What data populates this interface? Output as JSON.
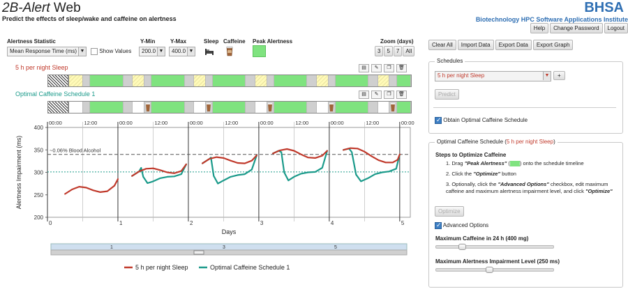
{
  "header": {
    "title_italic": "2B-Alert",
    "title_rest": " Web",
    "subtitle": "Predict the effects of sleep/wake and caffeine on alertness",
    "brand": "BHSA",
    "org": "Biotechnology HPC Software Applications Institute",
    "buttons": [
      "Help",
      "Change Password",
      "Logout"
    ]
  },
  "controls": {
    "alertness_statistic_label": "Alertness Statistic",
    "alertness_statistic_value": "Mean Response Time (ms)",
    "show_values_label": "Show Values",
    "ymin_label": "Y-Min",
    "ymin_value": "200.0",
    "ymax_label": "Y-Max",
    "ymax_value": "400.0",
    "sleep_label": "Sleep",
    "caffeine_label": "Caffeine",
    "peak_label": "Peak Alertness",
    "zoom_label": "Zoom (days)",
    "zoom_buttons": [
      "3",
      "5",
      "7",
      "All"
    ]
  },
  "schedules": [
    {
      "title": "5 h per night Sleep",
      "color": "#c0392b"
    },
    {
      "title": "Optimal Caffeine Schedule 1",
      "color": "#1a9a8a"
    }
  ],
  "actions": [
    "Clear All",
    "Import Data",
    "Export Data",
    "Export Graph"
  ],
  "panel": {
    "schedules_legend": "Schedules",
    "schedule_select": "5 h per night Sleep",
    "add_label": "+",
    "predict_label": "Predict",
    "obtain_label": "Obtain Optimal Caffeine Schedule",
    "opt_legend_prefix": "Optimal Caffeine Schedule (",
    "opt_legend_sched": "5 h per night Sleep",
    "opt_legend_suffix": ")",
    "steps_title": "Steps to Optimize Caffeine",
    "step1_a": "1. Drag ",
    "step1_b": "\"Peak Alertness\"",
    "step1_c": " (",
    "step1_d": ") onto the schedule timeline",
    "step2_a": "2. Click the ",
    "step2_b": "\"Optimize\"",
    "step2_c": " button",
    "step3_a": "3. Optionally, click the ",
    "step3_b": "\"Advanced Options\"",
    "step3_c": " checkbox, edit maximum caffeine and maximum alertness impairment level, and click ",
    "step3_d": "\"Optimize\"",
    "optimize_label": "Optimize",
    "advanced_label": "Advanced Options",
    "max_caffeine_label": "Maximum Caffeine in 24 h (400 mg)",
    "max_impairment_label": "Maximum Alertness Impairment Level (250 ms)",
    "max_caffeine_fraction": 0.2,
    "max_impairment_fraction": 0.45
  },
  "chart_data": {
    "type": "line",
    "ylabel": "Alertness Impairment (ms)",
    "xlabel": "Days",
    "ylim": [
      200,
      400
    ],
    "xlim": [
      0,
      5.15
    ],
    "yticks": [
      200,
      250,
      300,
      350,
      400
    ],
    "xticks": [
      "0",
      "1",
      "2",
      "3",
      "4",
      "5"
    ],
    "top_ticks": [
      "00:00",
      "12:00",
      "00:00",
      "12:00",
      "00:00",
      "12:00",
      "00:00",
      "12:00",
      "00:00",
      "12:00",
      "00:00"
    ],
    "reference_line": {
      "label": "~0.06% Blood Alcohol",
      "value": 340
    },
    "reference_line2": {
      "value": 301
    },
    "series": [
      {
        "name": "5 h per night Sleep",
        "color": "#c0392b",
        "segments": [
          [
            [
              0.25,
              252
            ],
            [
              0.35,
              262
            ],
            [
              0.45,
              268
            ],
            [
              0.55,
              266
            ],
            [
              0.65,
              260
            ],
            [
              0.75,
              256
            ],
            [
              0.85,
              258
            ],
            [
              0.95,
              270
            ],
            [
              1.0,
              285
            ]
          ],
          [
            [
              1.2,
              292
            ],
            [
              1.3,
              302
            ],
            [
              1.4,
              308
            ],
            [
              1.5,
              309
            ],
            [
              1.6,
              305
            ],
            [
              1.7,
              300
            ],
            [
              1.8,
              298
            ],
            [
              1.9,
              303
            ],
            [
              1.97,
              318
            ]
          ],
          [
            [
              2.2,
              320
            ],
            [
              2.3,
              330
            ],
            [
              2.4,
              334
            ],
            [
              2.5,
              332
            ],
            [
              2.6,
              326
            ],
            [
              2.7,
              321
            ],
            [
              2.8,
              320
            ],
            [
              2.9,
              326
            ],
            [
              2.97,
              338
            ]
          ],
          [
            [
              3.2,
              342
            ],
            [
              3.3,
              349
            ],
            [
              3.4,
              352
            ],
            [
              3.5,
              348
            ],
            [
              3.6,
              340
            ],
            [
              3.7,
              333
            ],
            [
              3.8,
              332
            ],
            [
              3.9,
              337
            ],
            [
              3.97,
              348
            ]
          ],
          [
            [
              4.2,
              350
            ],
            [
              4.3,
              354
            ],
            [
              4.4,
              353
            ],
            [
              4.5,
              346
            ],
            [
              4.6,
              336
            ],
            [
              4.7,
              327
            ],
            [
              4.8,
              322
            ],
            [
              4.9,
              322
            ],
            [
              4.97,
              328
            ],
            [
              5.0,
              340
            ]
          ]
        ]
      },
      {
        "name": "Optimal Caffeine Schedule 1",
        "color": "#1a9a8a",
        "segments": [
          [
            [
              1.2,
              292
            ],
            [
              1.3,
              302
            ],
            [
              1.33,
              310
            ],
            [
              1.36,
              290
            ],
            [
              1.42,
              276
            ],
            [
              1.5,
              280
            ],
            [
              1.6,
              287
            ],
            [
              1.7,
              290
            ],
            [
              1.8,
              291
            ],
            [
              1.9,
              296
            ],
            [
              1.97,
              318
            ]
          ],
          [
            [
              2.2,
              320
            ],
            [
              2.3,
              330
            ],
            [
              2.32,
              333
            ],
            [
              2.36,
              292
            ],
            [
              2.42,
              275
            ],
            [
              2.5,
              282
            ],
            [
              2.6,
              290
            ],
            [
              2.7,
              294
            ],
            [
              2.8,
              296
            ],
            [
              2.9,
              306
            ],
            [
              2.97,
              338
            ]
          ],
          [
            [
              3.2,
              342
            ],
            [
              3.28,
              348
            ],
            [
              3.32,
              345
            ],
            [
              3.36,
              300
            ],
            [
              3.42,
              282
            ],
            [
              3.5,
              290
            ],
            [
              3.6,
              297
            ],
            [
              3.7,
              300
            ],
            [
              3.8,
              301
            ],
            [
              3.9,
              310
            ],
            [
              3.97,
              348
            ]
          ],
          [
            [
              4.2,
              350
            ],
            [
              4.28,
              353
            ],
            [
              4.32,
              345
            ],
            [
              4.38,
              295
            ],
            [
              4.45,
              280
            ],
            [
              4.55,
              287
            ],
            [
              4.65,
              296
            ],
            [
              4.75,
              300
            ],
            [
              4.85,
              302
            ],
            [
              4.95,
              308
            ],
            [
              5.0,
              340
            ]
          ]
        ]
      }
    ],
    "legend": [
      "5 h per night Sleep",
      "Optimal Caffeine Schedule 1"
    ],
    "range_slider_labels": [
      "1",
      "3",
      "5"
    ]
  }
}
